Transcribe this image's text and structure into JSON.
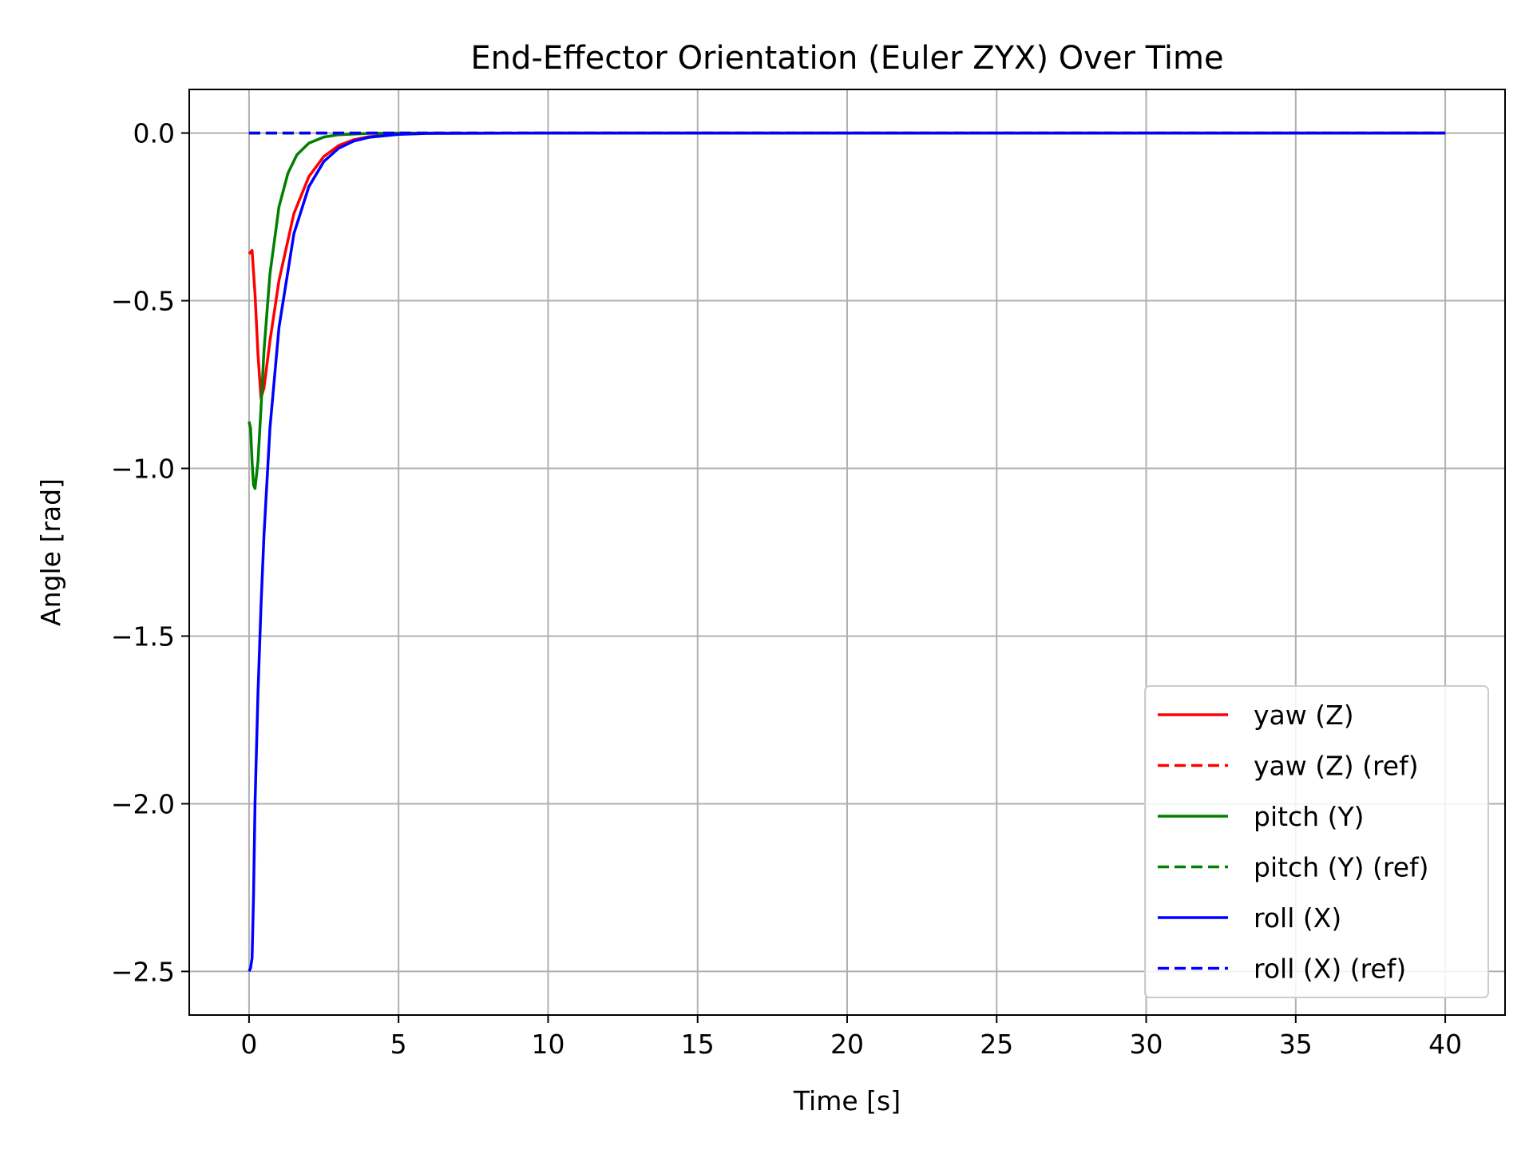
{
  "chart_data": {
    "type": "line",
    "title": "End-Effector Orientation (Euler ZYX) Over Time",
    "xlabel": "Time [s]",
    "ylabel": "Angle [rad]",
    "xlim": [
      -2,
      42
    ],
    "ylim": [
      -2.63,
      0.13
    ],
    "xticks": [
      0,
      5,
      10,
      15,
      20,
      25,
      30,
      35,
      40
    ],
    "xtick_labels": [
      "0",
      "5",
      "10",
      "15",
      "20",
      "25",
      "30",
      "35",
      "40"
    ],
    "yticks": [
      0.0,
      -0.5,
      -1.0,
      -1.5,
      -2.0,
      -2.5
    ],
    "ytick_labels": [
      "0.0",
      "−0.5",
      "−1.0",
      "−1.5",
      "−2.0",
      "−2.5"
    ],
    "grid": true,
    "legend_position": "bottom-right",
    "series": [
      {
        "name": "yaw (Z)",
        "color": "#ff0000",
        "dash": "solid",
        "x": [
          0,
          0.1,
          0.2,
          0.3,
          0.4,
          0.5,
          0.7,
          1.0,
          1.5,
          2.0,
          2.5,
          3.0,
          3.5,
          4.0,
          5.0,
          6.0,
          10,
          20,
          30,
          40
        ],
        "y": [
          -0.36,
          -0.35,
          -0.48,
          -0.66,
          -0.79,
          -0.76,
          -0.62,
          -0.44,
          -0.24,
          -0.13,
          -0.07,
          -0.037,
          -0.02,
          -0.011,
          -0.003,
          -0.001,
          0.0,
          0.0,
          0.0,
          0.0
        ]
      },
      {
        "name": "yaw (Z) (ref)",
        "color": "#ff0000",
        "dash": "dashed",
        "x": [
          0,
          40
        ],
        "y": [
          0.0,
          0.0
        ]
      },
      {
        "name": "pitch (Y)",
        "color": "#008000",
        "dash": "solid",
        "x": [
          0,
          0.05,
          0.1,
          0.15,
          0.2,
          0.3,
          0.4,
          0.5,
          0.7,
          1.0,
          1.3,
          1.6,
          2.0,
          2.5,
          3.0,
          4.0,
          5.0,
          10,
          20,
          40
        ],
        "y": [
          -0.86,
          -0.88,
          -0.98,
          -1.05,
          -1.06,
          -0.98,
          -0.82,
          -0.65,
          -0.42,
          -0.22,
          -0.12,
          -0.065,
          -0.03,
          -0.012,
          -0.005,
          -0.001,
          0.0,
          0.0,
          0.0,
          0.0
        ]
      },
      {
        "name": "pitch (Y) (ref)",
        "color": "#008000",
        "dash": "dashed",
        "x": [
          0,
          40
        ],
        "y": [
          0.0,
          0.0
        ]
      },
      {
        "name": "roll (X)",
        "color": "#0000ff",
        "dash": "solid",
        "x": [
          0,
          0.05,
          0.1,
          0.15,
          0.2,
          0.3,
          0.4,
          0.5,
          0.7,
          1.0,
          1.5,
          2.0,
          2.5,
          3.0,
          3.5,
          4.0,
          5.0,
          6.0,
          10,
          20,
          30,
          40
        ],
        "y": [
          -2.5,
          -2.49,
          -2.46,
          -2.28,
          -2.0,
          -1.67,
          -1.41,
          -1.2,
          -0.88,
          -0.58,
          -0.3,
          -0.16,
          -0.085,
          -0.045,
          -0.024,
          -0.013,
          -0.004,
          -0.001,
          0.0,
          0.0,
          0.0,
          0.0
        ]
      },
      {
        "name": "roll (X) (ref)",
        "color": "#0000ff",
        "dash": "dashed",
        "x": [
          0,
          40
        ],
        "y": [
          0.0,
          0.0
        ]
      }
    ]
  }
}
